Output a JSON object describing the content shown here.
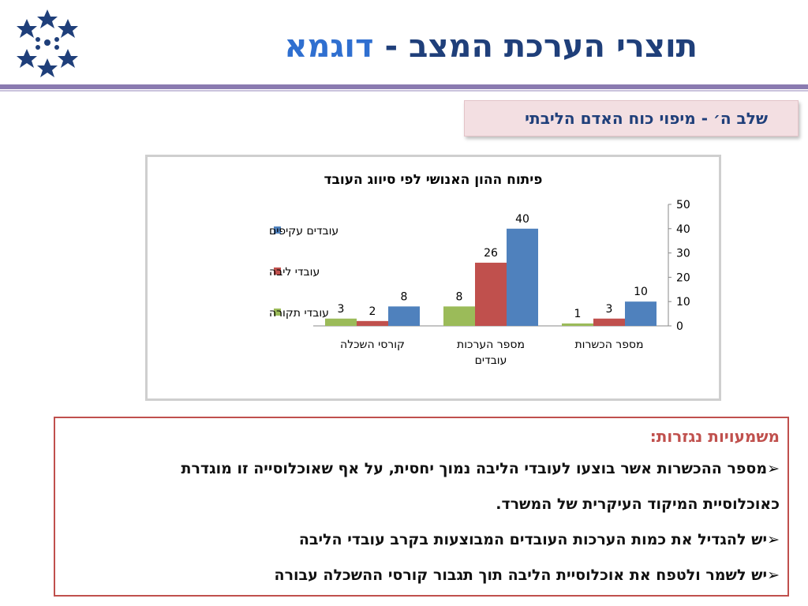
{
  "page": {
    "title_main": "תוצרי הערכת המצב -",
    "title_accent": "דוגמא",
    "stage_label": "שלב ה׳ - מיפוי כוח האדם הליבתי"
  },
  "colors": {
    "title": "#1f3f7a",
    "accent": "#2f6fd0",
    "rule": "#8a7ab0",
    "notes_border": "#c0504d"
  },
  "chart_data": {
    "type": "bar",
    "title": "פיתוח ההון האנושי לפי סיווג העובד",
    "categories": [
      "מספר הכשרות",
      "מספר הערכות עובדים",
      "קורסי השכלה"
    ],
    "category_lines": [
      [
        "מספר הכשרות"
      ],
      [
        "מספר הערכות",
        "עובדים"
      ],
      [
        "קורסי השכלה"
      ]
    ],
    "series": [
      {
        "name": "עובדי תקורה",
        "color": "#9bbb59",
        "values": [
          1,
          8,
          3
        ]
      },
      {
        "name": "עובדי ליבה",
        "color": "#c0504d",
        "values": [
          3,
          26,
          2
        ]
      },
      {
        "name": "עובדים עקיפים",
        "color": "#4f81bd",
        "values": [
          10,
          40,
          8
        ]
      }
    ],
    "ylim": [
      0,
      50
    ],
    "yticks": [
      0,
      10,
      20,
      30,
      40,
      50
    ],
    "y_axis_side": "right",
    "grid": false,
    "legend": "left"
  },
  "notes": {
    "heading": "משמעויות נגזרות:",
    "bullet": "➢",
    "items": [
      "מספר ההכשרות אשר בוצעו לעובדי הליבה נמוך יחסית, על אף שאוכלוסייה זו מוגדרת",
      "יש להגדיל את כמות הערכות העובדים המבוצעות בקרב עובדי הליבה",
      "יש לשמר ולטפח את אוכלוסיית הליבה תוך תגבור קורסי ההשכלה עבורה"
    ],
    "continuation": "כאוכלוסיית המיקוד העיקרית של המשרד."
  }
}
